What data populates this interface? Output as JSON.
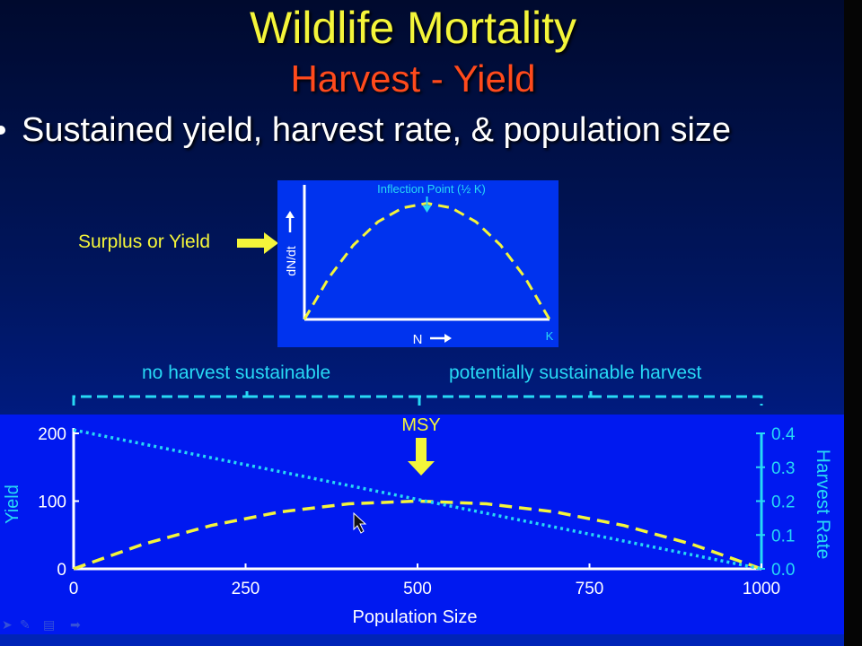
{
  "slide": {
    "title": "Wildlife Mortality",
    "subtitle": "Harvest - Yield",
    "bullet": "Sustained yield, harvest rate, & population size",
    "colors": {
      "yellow": "#f4f53a",
      "orange": "#ff4a1c",
      "cyan": "#27d9f5",
      "white": "#ffffff"
    }
  },
  "surplus_label": "Surplus or Yield",
  "brace_labels": {
    "left": "no harvest sustainable",
    "right": "potentially sustainable harvest"
  },
  "chart_data": [
    {
      "type": "line",
      "title": "",
      "annotation": "Inflection Point (½ K)",
      "xlabel": "N",
      "ylabel": "dN/dt",
      "x_tick_labels": [
        "K"
      ],
      "xlim": [
        0,
        1
      ],
      "ylim": [
        0,
        1.12
      ],
      "series": [
        {
          "style": "dashed",
          "color": "#f4f53a",
          "x": [
            0,
            0.1,
            0.2,
            0.3,
            0.4,
            0.5,
            0.6,
            0.7,
            0.8,
            0.9,
            1.0
          ],
          "values": [
            0,
            0.36,
            0.64,
            0.84,
            0.96,
            1.0,
            0.96,
            0.84,
            0.64,
            0.36,
            0
          ]
        }
      ]
    },
    {
      "type": "line",
      "title": "",
      "xlabel": "Population Size",
      "ylabel": "Yield",
      "y2label": "Harvest Rate",
      "annotation": "MSY",
      "x_ticks": [
        0,
        250,
        500,
        750,
        1000
      ],
      "y_ticks": [
        0,
        100,
        200
      ],
      "y2_ticks": [
        "0.0",
        "0.1",
        "0.2",
        "0.3",
        "0.4"
      ],
      "xlim": [
        0,
        1000
      ],
      "ylim": [
        0,
        200
      ],
      "y2lim": [
        0,
        0.4
      ],
      "series": [
        {
          "axis": "left",
          "style": "dashed",
          "color": "#f4f53a",
          "x": [
            0,
            100,
            200,
            300,
            400,
            500,
            600,
            700,
            800,
            900,
            1000
          ],
          "values": [
            0,
            36,
            64,
            84,
            96,
            100,
            96,
            84,
            64,
            36,
            0
          ]
        },
        {
          "axis": "right",
          "style": "dotted",
          "color": "#27d9f5",
          "x": [
            0,
            1000
          ],
          "values": [
            0.41,
            0.0
          ]
        }
      ]
    }
  ],
  "toolbar": {
    "icons": [
      "arrow-icon",
      "pen-icon",
      "slides-icon",
      "next-icon"
    ]
  }
}
